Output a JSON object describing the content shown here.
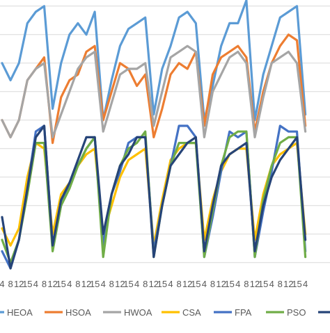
{
  "chart_data": {
    "type": "line",
    "categories": [
      "4",
      "8",
      "12",
      "15",
      "4",
      "8",
      "12",
      "15",
      "4",
      "8",
      "12",
      "15",
      "4",
      "8",
      "12",
      "15",
      "4",
      "8",
      "12",
      "15",
      "4",
      "8",
      "12",
      "15",
      "4",
      "8",
      "12",
      "15",
      "4",
      "8",
      "12",
      "15",
      "4",
      "8",
      "12",
      "15",
      "4"
    ],
    "series": [
      {
        "name": "HEOA",
        "color": "#5b9bd5",
        "values": [
          35,
          32,
          35,
          42,
          44,
          45,
          27,
          35,
          40,
          42,
          40,
          44,
          25,
          32,
          38,
          41,
          42,
          43,
          26,
          34,
          38,
          43,
          44,
          42,
          25,
          31,
          38,
          42,
          42,
          46,
          25,
          33,
          38,
          43,
          44,
          45,
          26
        ]
      },
      {
        "name": "HSOA",
        "color": "#ed7d31",
        "values": [
          25,
          22,
          25,
          32,
          34,
          36,
          21,
          29,
          32,
          33,
          37,
          38,
          25,
          30,
          35,
          34,
          31,
          33,
          22,
          27,
          33,
          35,
          34,
          37,
          24,
          33,
          36,
          37,
          38,
          36,
          23,
          30,
          35,
          38,
          40,
          39,
          24
        ]
      },
      {
        "name": "HWOA",
        "color": "#a5a5a5",
        "values": [
          25,
          22,
          25,
          32,
          34,
          35,
          22,
          26,
          30,
          34,
          36,
          37,
          23,
          28,
          33,
          34,
          34,
          35,
          24,
          30,
          36,
          37,
          38,
          37,
          22,
          30,
          33,
          36,
          37,
          35,
          22,
          29,
          35,
          36,
          37,
          35,
          23
        ]
      },
      {
        "name": "CSA",
        "color": "#ffc000",
        "values": [
          6,
          3,
          6,
          15,
          21,
          20,
          5,
          12,
          14,
          17,
          19,
          20,
          5,
          10,
          15,
          18,
          19,
          20,
          3,
          11,
          18,
          20,
          21,
          21,
          4,
          11,
          16,
          19,
          20,
          20,
          4,
          12,
          17,
          19,
          20,
          21,
          5
        ]
      },
      {
        "name": "FPA",
        "color": "#4472c4",
        "values": [
          2,
          -1,
          4,
          13,
          23,
          24,
          3,
          10,
          14,
          17,
          20,
          22,
          3,
          12,
          16,
          21,
          22,
          22,
          2,
          10,
          17,
          24,
          24,
          22,
          1,
          8,
          16,
          23,
          22,
          23,
          1,
          9,
          16,
          24,
          23,
          23,
          2
        ]
      },
      {
        "name": "PSO",
        "color": "#70ad47",
        "values": [
          4,
          0,
          4,
          12,
          21,
          21,
          2,
          10,
          13,
          17,
          20,
          22,
          1,
          12,
          17,
          20,
          21,
          23,
          1,
          10,
          17,
          21,
          21,
          21,
          1,
          9,
          17,
          22,
          23,
          23,
          1,
          11,
          17,
          21,
          22,
          22,
          1
        ]
      },
      {
        "name": "",
        "color": "#264478",
        "values": [
          8,
          -1,
          4,
          13,
          22,
          24,
          3,
          11,
          14,
          18,
          22,
          22,
          5,
          12,
          17,
          19,
          22,
          22,
          1,
          10,
          17,
          19,
          21,
          22,
          2,
          10,
          17,
          19,
          20,
          21,
          2,
          10,
          15,
          18,
          20,
          22,
          4
        ]
      }
    ],
    "ylim": [
      -11,
      55
    ],
    "grid": true,
    "legend": "bottom"
  }
}
